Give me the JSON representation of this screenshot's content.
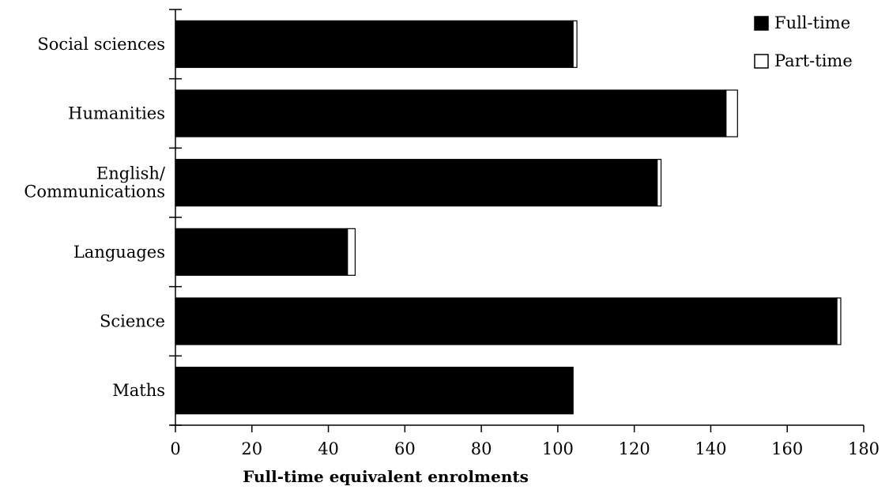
{
  "chart_data": {
    "type": "bar",
    "orientation": "horizontal",
    "stacked": true,
    "categories": [
      "Social sciences",
      "Humanities",
      "English/Communications",
      "Languages",
      "Science",
      "Maths"
    ],
    "category_label_lines": [
      [
        "Social sciences"
      ],
      [
        "Humanities"
      ],
      [
        "English/",
        "Communications"
      ],
      [
        "Languages"
      ],
      [
        "Science"
      ],
      [
        "Maths"
      ]
    ],
    "series": [
      {
        "name": "Full-time",
        "color": "#000000",
        "values": [
          104,
          144,
          126,
          45,
          173,
          104
        ]
      },
      {
        "name": "Part-time",
        "color": "#ffffff",
        "values": [
          1,
          3,
          1,
          2,
          1,
          0
        ]
      }
    ],
    "xlabel": "Full-time equivalent enrolments",
    "ylabel": "",
    "xlim": [
      0,
      180
    ],
    "xticks": [
      0,
      20,
      40,
      60,
      80,
      100,
      120,
      140,
      160,
      180
    ],
    "grid": false,
    "legend_position": "top-right"
  }
}
